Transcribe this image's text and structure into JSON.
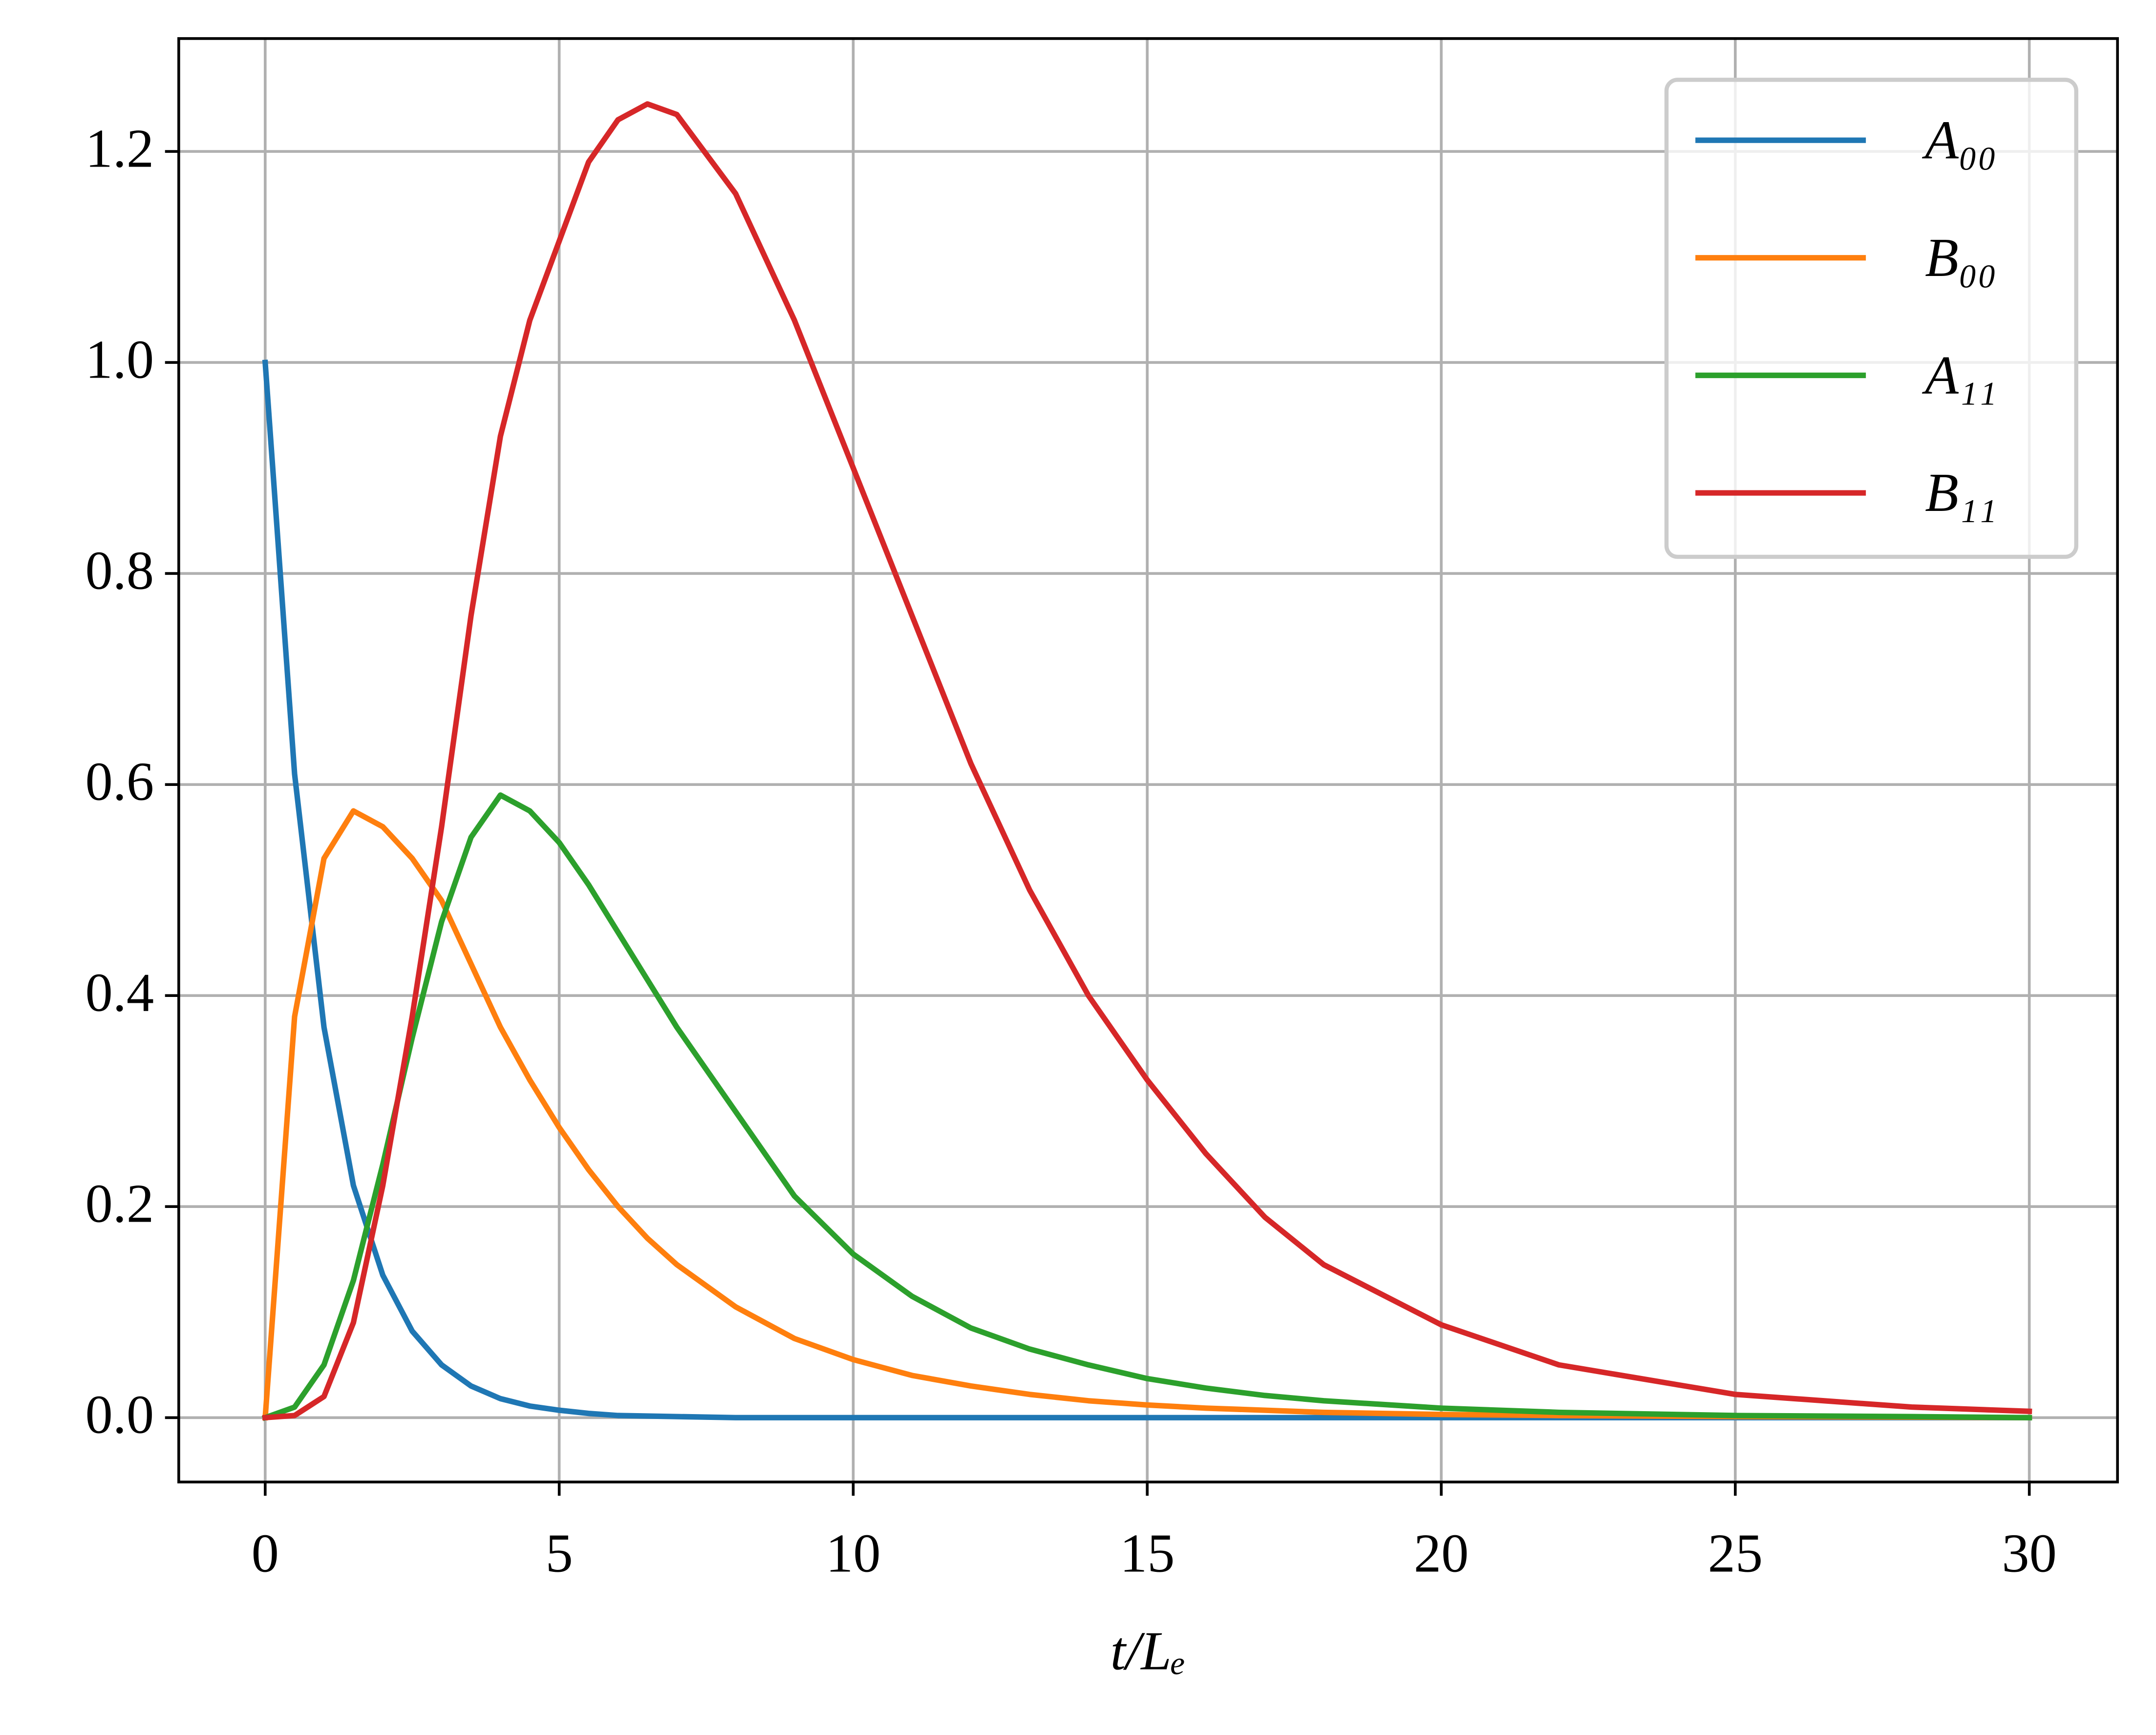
{
  "chart_data": {
    "type": "line",
    "x_label": "t/Lₑ",
    "x": [
      0,
      0.5,
      1,
      1.5,
      2,
      2.5,
      3,
      3.5,
      4,
      4.5,
      5,
      5.5,
      6,
      6.5,
      7,
      8,
      9,
      10,
      11,
      12,
      13,
      14,
      15,
      16,
      17,
      18,
      20,
      22,
      25,
      28,
      30
    ],
    "series": [
      {
        "name": "A₀₀",
        "color": "#1f77b4",
        "values": [
          1,
          0.61,
          0.37,
          0.22,
          0.135,
          0.082,
          0.05,
          0.03,
          0.018,
          0.011,
          0.007,
          0.004,
          0.002,
          0.0015,
          0.001,
          0,
          0,
          0,
          0,
          0,
          0,
          0,
          0,
          0,
          0,
          0,
          0,
          0,
          0,
          0,
          0
        ]
      },
      {
        "name": "B₀₀",
        "color": "#ff7f0e",
        "values": [
          0,
          0.38,
          0.53,
          0.575,
          0.56,
          0.53,
          0.49,
          0.43,
          0.37,
          0.32,
          0.275,
          0.235,
          0.2,
          0.17,
          0.145,
          0.105,
          0.075,
          0.055,
          0.04,
          0.03,
          0.022,
          0.016,
          0.012,
          0.009,
          0.007,
          0.005,
          0.003,
          0.002,
          0.001,
          0.0005,
          0
        ]
      },
      {
        "name": "A₁₁",
        "color": "#2ca02c",
        "values": [
          0,
          0.01,
          0.05,
          0.13,
          0.24,
          0.36,
          0.47,
          0.55,
          0.59,
          0.575,
          0.545,
          0.505,
          0.46,
          0.415,
          0.37,
          0.29,
          0.21,
          0.155,
          0.115,
          0.085,
          0.065,
          0.05,
          0.037,
          0.028,
          0.021,
          0.016,
          0.009,
          0.005,
          0.002,
          0.001,
          0
        ]
      },
      {
        "name": "B₁₁",
        "color": "#d62728",
        "values": [
          0,
          0.002,
          0.02,
          0.09,
          0.22,
          0.38,
          0.56,
          0.76,
          0.93,
          1.04,
          1.115,
          1.19,
          1.23,
          1.245,
          1.235,
          1.16,
          1.04,
          0.9,
          0.76,
          0.62,
          0.5,
          0.4,
          0.32,
          0.25,
          0.19,
          0.145,
          0.088,
          0.05,
          0.022,
          0.01,
          0.006
        ]
      }
    ],
    "xlim": [
      -1.47,
      31.5
    ],
    "ylim": [
      -0.061,
      1.307
    ],
    "xticks": [
      0,
      5,
      10,
      15,
      20,
      25,
      30
    ],
    "yticks": [
      {
        "value": 0,
        "label": "0.0"
      },
      0.2,
      0.4,
      0.6,
      0.8,
      {
        "value": 1,
        "label": "1.0"
      },
      1.2
    ],
    "grid": true,
    "legend": "upper right"
  }
}
